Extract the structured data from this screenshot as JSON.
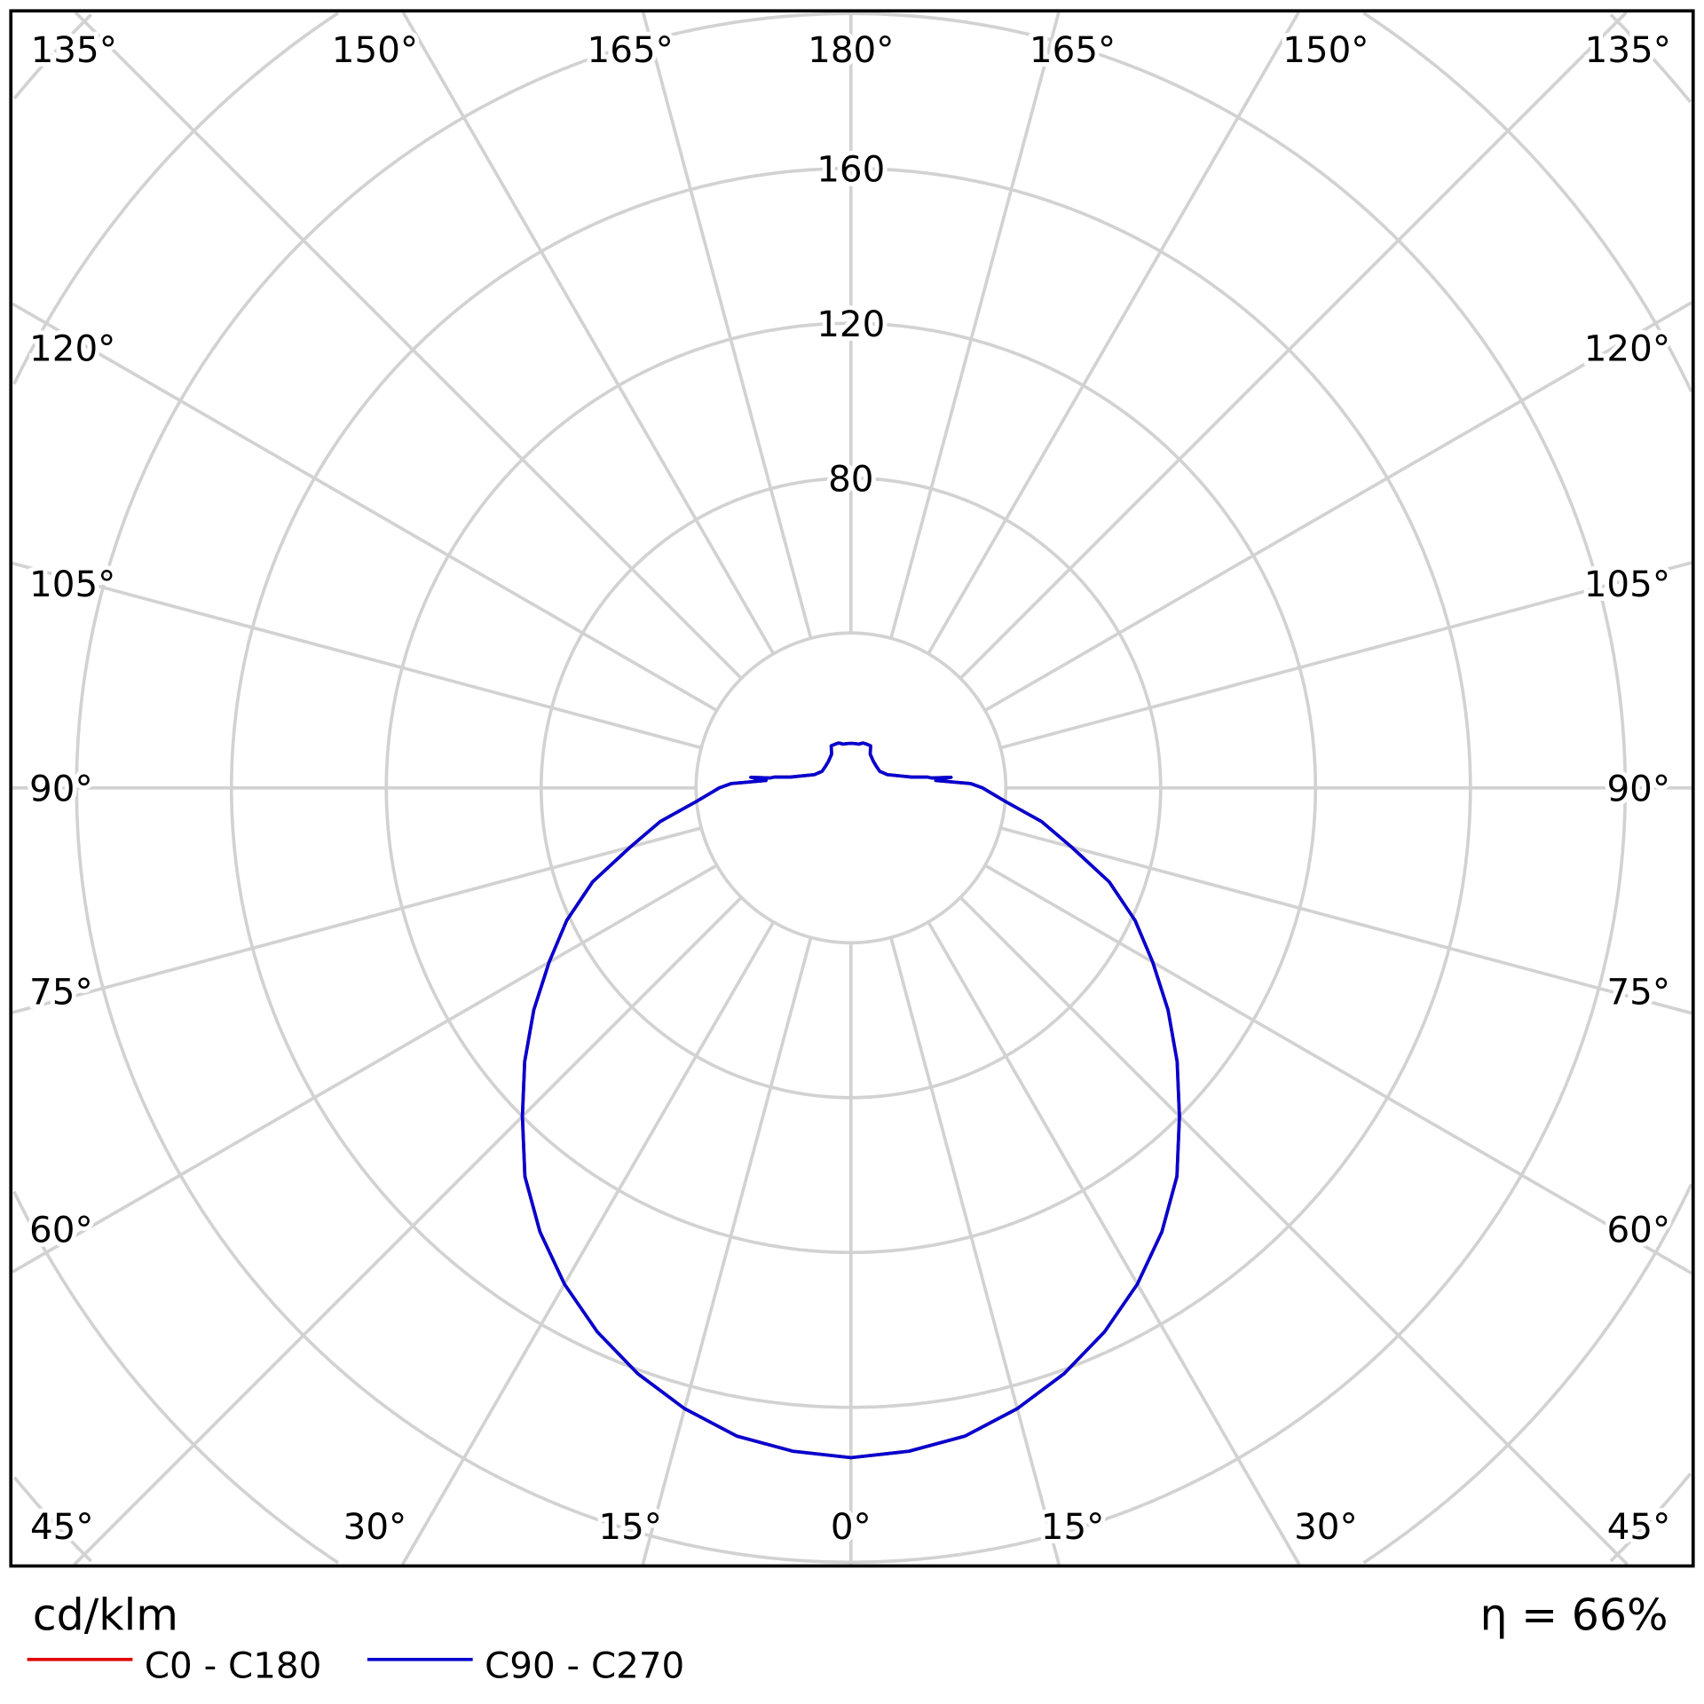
{
  "chart_data": {
    "type": "polar-line",
    "unit_label": "cd/klm",
    "efficiency_label": "η = 66%",
    "radial_ticks": [
      80,
      120,
      160
    ],
    "radial_grid": [
      40,
      80,
      120,
      160,
      200,
      240,
      280
    ],
    "angle_step_deg": 15,
    "angle_labels": {
      "top": [
        "135°",
        "150°",
        "165°",
        "180°",
        "165°",
        "150°",
        "135°"
      ],
      "left": [
        "120°",
        "105°",
        "90°",
        "75°",
        "60°"
      ],
      "right": [
        "120°",
        "105°",
        "90°",
        "75°",
        "60°"
      ],
      "bottom": [
        "45°",
        "30°",
        "15°",
        "0°",
        "15°",
        "30°",
        "45°"
      ]
    },
    "grid": true,
    "legend_placement": "bottom-left",
    "series": [
      {
        "name": "C0 - C180",
        "color": "#e00000",
        "angles": [
          0,
          5,
          10,
          15,
          20,
          25,
          30,
          35,
          40,
          45,
          50,
          55,
          60,
          65,
          70,
          75,
          80,
          85,
          90,
          92,
          95,
          96,
          97,
          98,
          100,
          110,
          120,
          130,
          140,
          150,
          155,
          160,
          165,
          170,
          175,
          180
        ],
        "values": [
          173,
          172,
          170,
          166,
          161,
          155,
          148,
          140,
          131,
          120,
          110,
          100,
          90,
          81,
          71,
          59,
          50,
          40,
          34,
          31,
          22,
          26,
          21,
          20,
          16,
          10,
          8.6,
          8.6,
          9,
          10,
          12,
          12,
          12,
          11.5,
          11.5,
          11.5
        ]
      },
      {
        "name": "C90 - C270",
        "color": "#0000d0",
        "angles": [
          0,
          5,
          10,
          15,
          20,
          25,
          30,
          35,
          40,
          45,
          50,
          55,
          60,
          65,
          70,
          75,
          80,
          85,
          90,
          92,
          95,
          96,
          97,
          98,
          100,
          110,
          120,
          130,
          140,
          150,
          155,
          160,
          165,
          170,
          175,
          180
        ],
        "values": [
          173,
          172,
          170,
          166,
          161,
          155,
          148,
          140,
          131,
          120,
          110,
          100,
          90,
          81,
          71,
          59,
          50,
          40,
          34,
          31,
          22,
          26,
          21,
          20,
          16,
          10,
          8.6,
          8.6,
          9,
          10,
          12,
          12,
          12,
          11.5,
          11.5,
          11.5
        ]
      }
    ]
  }
}
